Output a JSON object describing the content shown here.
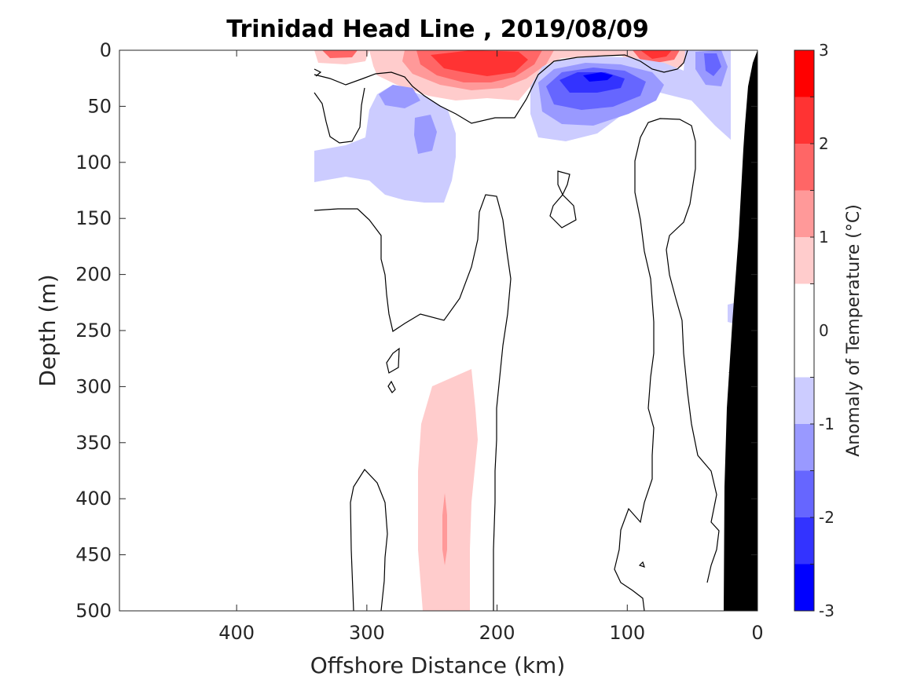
{
  "chart_data": {
    "type": "contour",
    "title": "Trinidad Head Line , 2019/08/09",
    "xlabel": "Offshore Distance (km)",
    "ylabel": "Depth (m)",
    "x_reversed": true,
    "y_reversed": true,
    "xlim": [
      490,
      0
    ],
    "ylim": [
      0,
      500
    ],
    "xticks": [
      400,
      300,
      200,
      100,
      0
    ],
    "yticks": [
      0,
      50,
      100,
      150,
      200,
      250,
      300,
      350,
      400,
      450,
      500
    ],
    "colorbar": {
      "label": "Anomaly of Temperature (°C)",
      "range": [
        -3,
        3
      ],
      "ticks": [
        3,
        2,
        1,
        0,
        -1,
        -2,
        -3
      ],
      "levels": [
        -3,
        -2.5,
        -2,
        -1.5,
        -1,
        -0.5,
        0.5,
        1,
        1.5,
        2,
        2.5,
        3
      ],
      "colors_low_to_high": [
        "#0000ff",
        "#3333ff",
        "#6666ff",
        "#9999ff",
        "#ccccff",
        "#ffffff",
        "#ffcccc",
        "#ff9999",
        "#ff6666",
        "#ff3333",
        "#ff0000"
      ]
    },
    "anomaly_regions": [
      {
        "name": "surface warm core near 200 km",
        "x_range": [
          240,
          170
        ],
        "depth_range": [
          0,
          35
        ],
        "max_anomaly": 2.5
      },
      {
        "name": "surface warm patch near 320 km",
        "x_range": [
          340,
          290
        ],
        "depth_range": [
          0,
          10
        ],
        "max_anomaly": 2
      },
      {
        "name": "surface warm patch near 80 km",
        "x_range": [
          100,
          55
        ],
        "depth_range": [
          0,
          15
        ],
        "max_anomaly": 2.5
      },
      {
        "name": "subsurface cold core near 125 km",
        "x_range": [
          165,
          80
        ],
        "depth_range": [
          5,
          75
        ],
        "min_anomaly": -2.5
      },
      {
        "name": "cold patch near 280 km",
        "x_range": [
          340,
          225
        ],
        "depth_range": [
          20,
          135
        ],
        "min_anomaly": -1.5
      },
      {
        "name": "cold patch near 30 km",
        "x_range": [
          55,
          20
        ],
        "depth_range": [
          0,
          60
        ],
        "min_anomaly": -1.5
      },
      {
        "name": "deep warm column near 235 km",
        "x_range": [
          255,
          210
        ],
        "depth_range": [
          285,
          500
        ],
        "max_anomaly": 1
      }
    ],
    "bathymetry": {
      "color": "#000000",
      "bottom_edge": [
        [
          0,
          0
        ],
        [
          10,
          100
        ],
        [
          22,
          250
        ],
        [
          38,
          500
        ]
      ]
    },
    "data_coverage": {
      "x_offshore_limit_km": 340
    }
  }
}
